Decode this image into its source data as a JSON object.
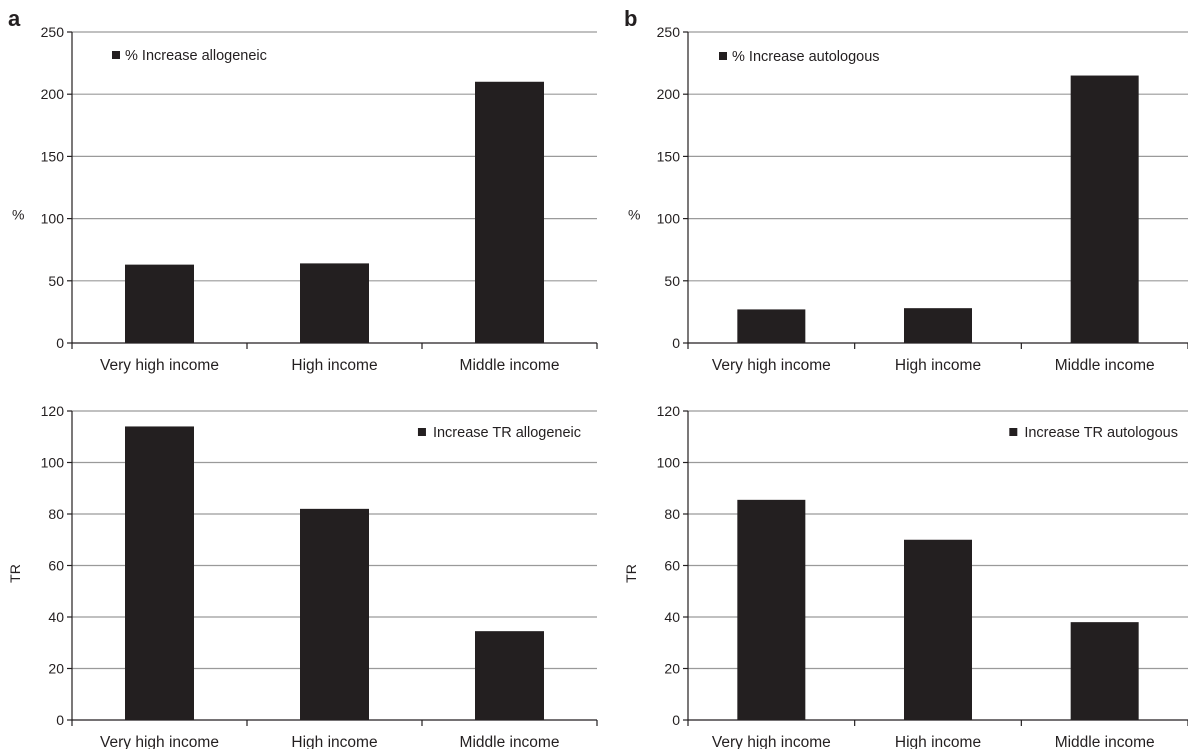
{
  "panel_labels": [
    "a",
    "b"
  ],
  "colors": {
    "bar": "#231f20",
    "grid": "#9a9a9a",
    "axis": "#231f20"
  },
  "chart_data": [
    {
      "panel": "a",
      "type": "bar",
      "categories": [
        "Very high income",
        "High income",
        "Middle income"
      ],
      "series": [
        {
          "name": "% Increase allogeneic",
          "values": [
            63,
            64,
            210
          ]
        }
      ],
      "xlabel": "",
      "ylabel": "%",
      "ylim": [
        0,
        250
      ],
      "yticks": [
        0,
        50,
        100,
        150,
        200,
        250
      ],
      "grid": true,
      "legend": "top-left"
    },
    {
      "panel": "b",
      "type": "bar",
      "categories": [
        "Very high income",
        "High income",
        "Middle income"
      ],
      "series": [
        {
          "name": "% Increase autologous",
          "values": [
            27,
            28,
            215
          ]
        }
      ],
      "xlabel": "",
      "ylabel": "%",
      "ylim": [
        0,
        250
      ],
      "yticks": [
        0,
        50,
        100,
        150,
        200,
        250
      ],
      "grid": true,
      "legend": "top-left"
    },
    {
      "panel": "a",
      "type": "bar",
      "categories": [
        "Very high income",
        "High income",
        "Middle income"
      ],
      "series": [
        {
          "name": "Increase TR allogeneic",
          "values": [
            114,
            82,
            34.5
          ]
        }
      ],
      "xlabel": "",
      "ylabel": "TR",
      "ylim": [
        0,
        120
      ],
      "yticks": [
        0,
        20,
        40,
        60,
        80,
        100,
        120
      ],
      "grid": true,
      "legend": "top-right"
    },
    {
      "panel": "b",
      "type": "bar",
      "categories": [
        "Very high income",
        "High income",
        "Middle income"
      ],
      "series": [
        {
          "name": "Increase TR autologous",
          "values": [
            85.5,
            70,
            38
          ]
        }
      ],
      "xlabel": "",
      "ylabel": "TR",
      "ylim": [
        0,
        120
      ],
      "yticks": [
        0,
        20,
        40,
        60,
        80,
        100,
        120
      ],
      "grid": true,
      "legend": "top-right"
    }
  ]
}
